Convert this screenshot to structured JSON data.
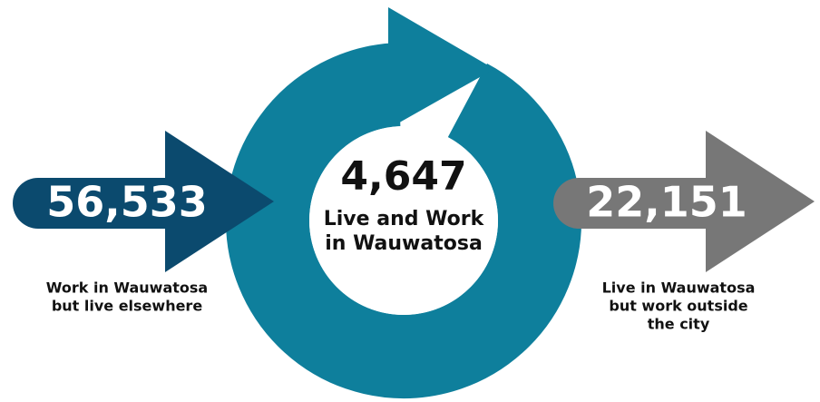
{
  "inflow": {
    "value": "56,533",
    "label_lines": [
      "Work in Wauwatosa",
      "but live elsewhere"
    ]
  },
  "center": {
    "value": "4,647",
    "label_lines": [
      "Live and Work",
      "in Wauwatosa"
    ]
  },
  "outflow": {
    "value": "22,151",
    "label_lines": [
      "Live in Wauwatosa",
      "but work outside",
      "the city"
    ]
  }
}
